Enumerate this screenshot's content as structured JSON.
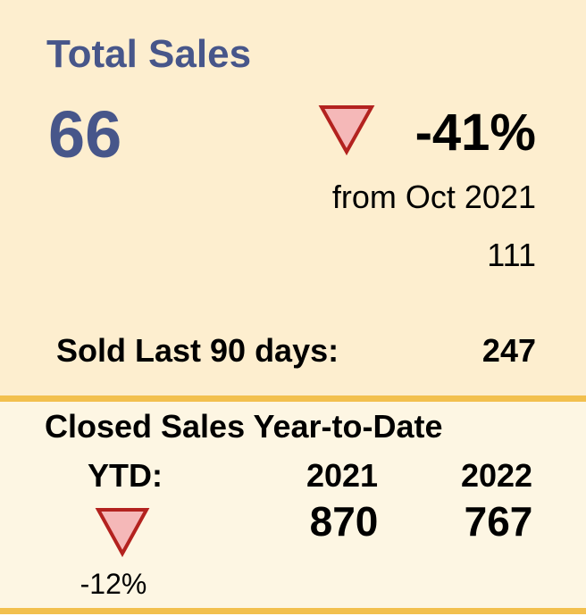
{
  "header": {
    "title": "Total Sales"
  },
  "main": {
    "value": "66"
  },
  "change": {
    "value": "-41%",
    "comparison": "from Oct 2021",
    "previous": "111"
  },
  "last90": {
    "label": "Sold Last 90 days:",
    "value": "247"
  },
  "ytd": {
    "title": "Closed Sales Year-to-Date",
    "label": "YTD:",
    "columns": [
      "2021",
      "2022"
    ],
    "values": [
      "870",
      "767"
    ],
    "change": "-12%"
  }
}
